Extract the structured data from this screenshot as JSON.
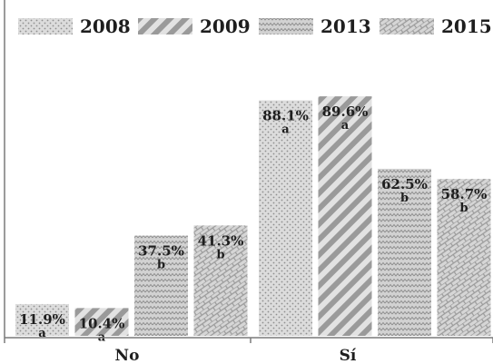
{
  "chart_data": {
    "type": "bar",
    "categories": [
      "No",
      "Sí"
    ],
    "series": [
      {
        "name": "2008",
        "values": [
          11.9,
          88.1
        ],
        "labels": [
          "11.9%",
          "88.1%"
        ],
        "letters": [
          "a",
          "a"
        ],
        "pattern": "dots"
      },
      {
        "name": "2009",
        "values": [
          10.4,
          89.6
        ],
        "labels": [
          "10.4%",
          "89.6%"
        ],
        "letters": [
          "a",
          "a"
        ],
        "pattern": "diagonal"
      },
      {
        "name": "2013",
        "values": [
          37.5,
          62.5
        ],
        "labels": [
          "37.5%",
          "62.5%"
        ],
        "letters": [
          "b",
          "b"
        ],
        "pattern": "waves"
      },
      {
        "name": "2015",
        "values": [
          41.3,
          58.7
        ],
        "labels": [
          "41.3%",
          "58.7%"
        ],
        "letters": [
          "b",
          "b"
        ],
        "pattern": "bricks"
      }
    ],
    "ylim": [
      0,
      100
    ],
    "grid": false,
    "legend": "top",
    "colors": {
      "bar_fill": "#d6d6d6",
      "pattern": "#9c9c9c",
      "text": "#1e1e1e",
      "frame": "#7a7a7a"
    }
  }
}
